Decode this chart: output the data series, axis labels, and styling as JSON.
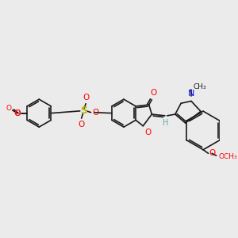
{
  "background_color": "#ebebeb",
  "bond_color": "#1a1a1a",
  "figsize": [
    3.0,
    3.0
  ],
  "dpi": 100,
  "xlim": [
    0,
    300
  ],
  "ylim": [
    0,
    300
  ]
}
